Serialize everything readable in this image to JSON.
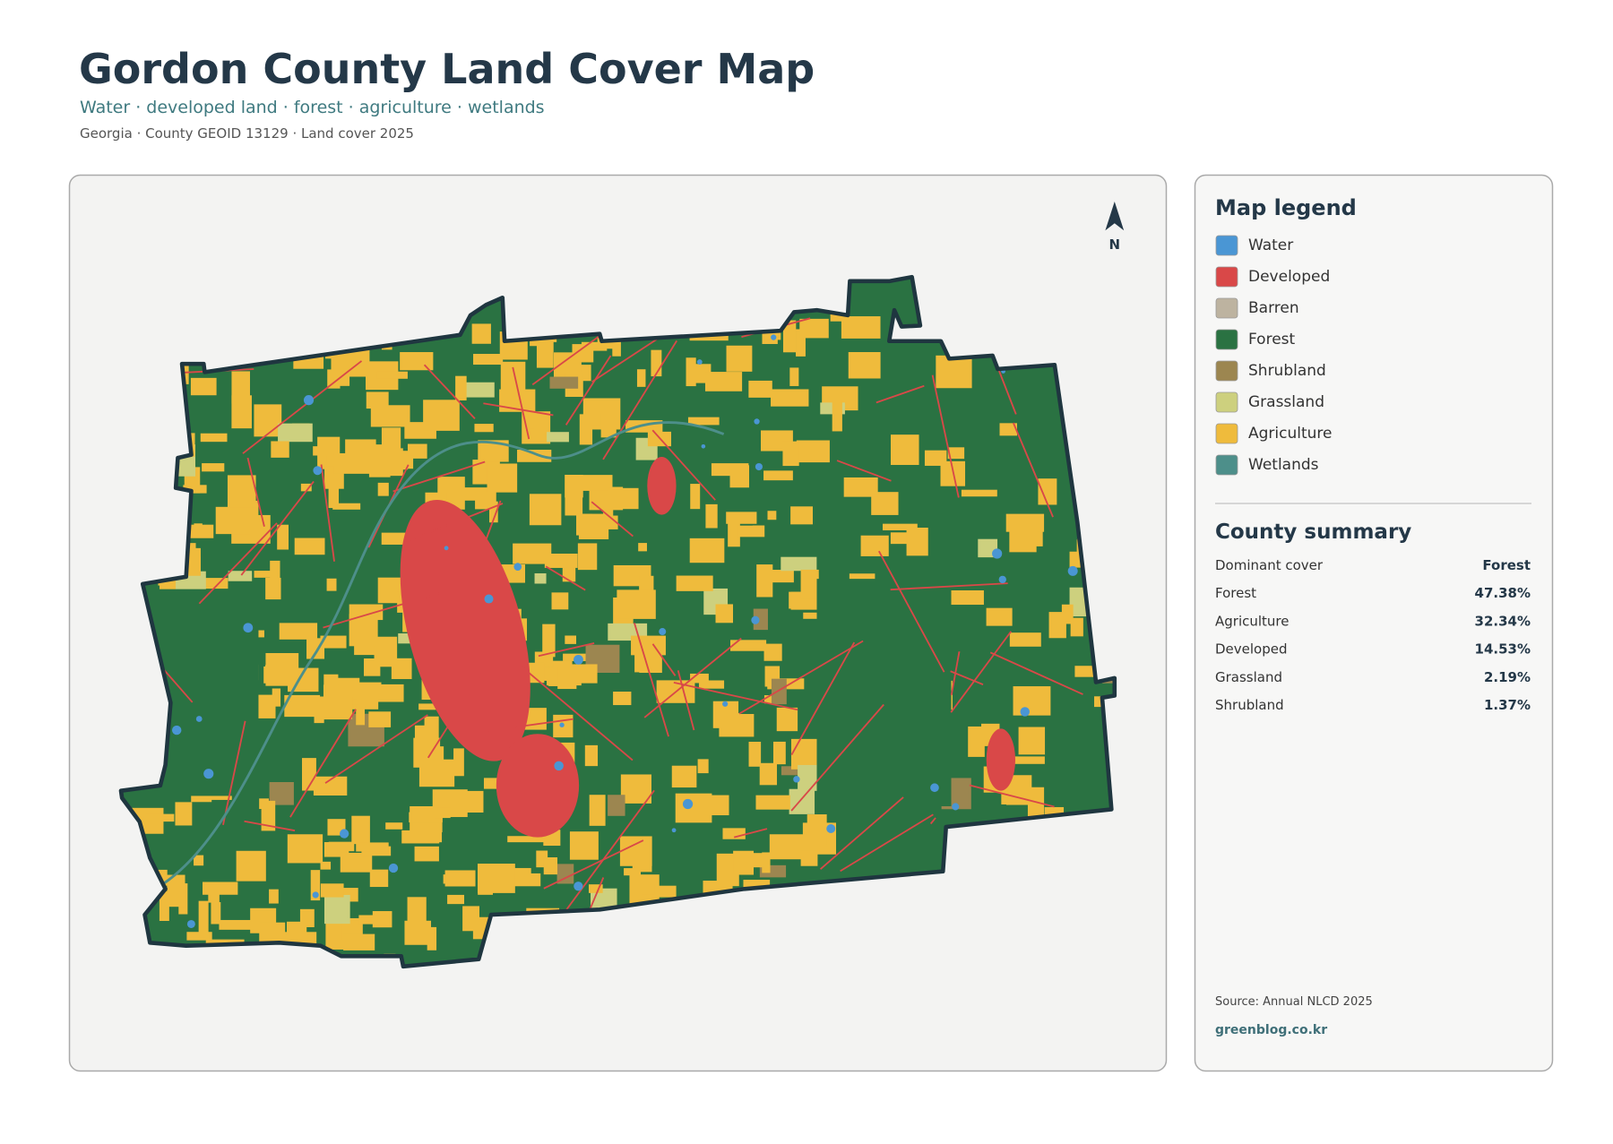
{
  "header": {
    "title": "Gordon County Land Cover Map",
    "subtitle": "Water · developed land · forest · agriculture · wetlands",
    "meta": "Georgia · County GEOID 13129 · Land cover 2025"
  },
  "map": {
    "north_label": "N"
  },
  "legend": {
    "title": "Map legend",
    "items": [
      {
        "label": "Water",
        "color": "#4a96d4"
      },
      {
        "label": "Developed",
        "color": "#d94848"
      },
      {
        "label": "Barren",
        "color": "#bdb3a0"
      },
      {
        "label": "Forest",
        "color": "#2a7242"
      },
      {
        "label": "Shrubland",
        "color": "#9c8650"
      },
      {
        "label": "Grassland",
        "color": "#cdd07e"
      },
      {
        "label": "Agriculture",
        "color": "#efbb3c"
      },
      {
        "label": "Wetlands",
        "color": "#4d8f8a"
      }
    ]
  },
  "summary": {
    "title": "County summary",
    "rows": [
      [
        "Dominant cover",
        "Forest"
      ],
      [
        "Forest",
        "47.38%"
      ],
      [
        "Agriculture",
        "32.34%"
      ],
      [
        "Developed",
        "14.53%"
      ],
      [
        "Grassland",
        "2.19%"
      ],
      [
        "Shrubland",
        "1.37%"
      ]
    ]
  },
  "footer": {
    "source": "Source: Annual NLCD 2025",
    "site": "greenblog.co.kr"
  }
}
